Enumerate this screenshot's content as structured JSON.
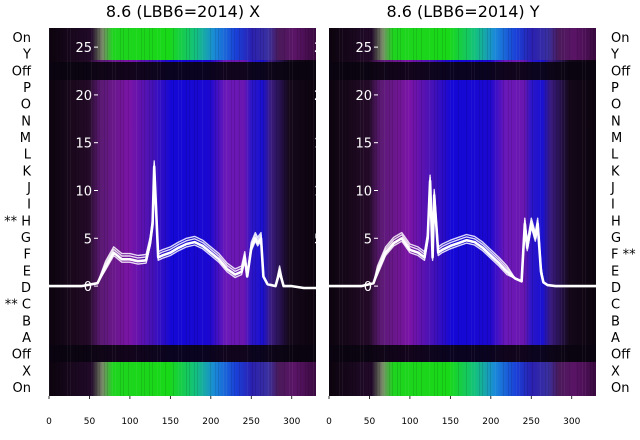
{
  "chart_data": [
    {
      "type": "line",
      "title": "8.6 (LBB6=2014) X",
      "x_ticks": [
        0,
        50,
        100,
        150,
        200,
        250,
        300
      ],
      "y_ticks": [
        0,
        5,
        10,
        15,
        20,
        25
      ],
      "xlim": [
        0,
        330
      ],
      "ylim": [
        -11.5,
        27
      ],
      "row_labels": [
        "On",
        "Y",
        "Off",
        "P",
        "O",
        "N",
        "M",
        "L",
        "K",
        "J",
        "I",
        "** H",
        "G",
        "F",
        "E",
        "D",
        "** C",
        "B",
        "A",
        "Off",
        "X",
        "On"
      ],
      "row_label_side": "left",
      "background": "heatmap",
      "series": [
        {
          "x": [
            0,
            40,
            60,
            70,
            80,
            90,
            100,
            110,
            120,
            125,
            128,
            130,
            135,
            140,
            150,
            160,
            170,
            180,
            190,
            200,
            210,
            220,
            230,
            238,
            242,
            245,
            250,
            255,
            258,
            262,
            265,
            270,
            280,
            285,
            290,
            300,
            315,
            330
          ],
          "y": [
            0,
            0,
            0.3,
            2,
            3.5,
            2.8,
            2.8,
            2.6,
            2.7,
            4.5,
            6.5,
            12.5,
            3,
            3.2,
            3.5,
            4,
            4.4,
            4.6,
            4.2,
            3.5,
            2.8,
            1.8,
            1.2,
            1.5,
            3,
            1,
            4,
            5,
            4.5,
            5,
            1,
            0.2,
            0,
            1.5,
            0,
            0,
            -0.2,
            -0.2
          ]
        }
      ]
    },
    {
      "type": "line",
      "title": "8.6 (LBB6=2014) Y",
      "x_ticks": [
        0,
        50,
        100,
        150,
        200,
        250,
        300
      ],
      "y_ticks": [
        0,
        5,
        10,
        15,
        20,
        25
      ],
      "xlim": [
        0,
        330
      ],
      "ylim": [
        -11.5,
        27
      ],
      "row_labels": [
        "On",
        "Y",
        "Off",
        "P",
        "O",
        "N",
        "M",
        "L",
        "K",
        "J",
        "I",
        "H",
        "G",
        "F **",
        "E",
        "D",
        "C",
        "B",
        "A",
        "Off",
        "X",
        "On"
      ],
      "row_label_side": "right",
      "background": "heatmap",
      "series": [
        {
          "x": [
            0,
            40,
            55,
            60,
            70,
            80,
            90,
            100,
            110,
            118,
            122,
            125,
            128,
            130,
            135,
            140,
            150,
            160,
            170,
            180,
            190,
            200,
            210,
            220,
            230,
            238,
            242,
            245,
            250,
            255,
            258,
            262,
            265,
            270,
            280,
            330
          ],
          "y": [
            0,
            0,
            0.3,
            1.5,
            3.5,
            4.5,
            5,
            3.8,
            3.5,
            3,
            5,
            11,
            3,
            9.5,
            3.5,
            3.8,
            4.2,
            4.5,
            4.8,
            4.6,
            4,
            3.2,
            2.4,
            1.5,
            0.8,
            0.5,
            6.5,
            4,
            6.5,
            5,
            6.5,
            1.5,
            0.4,
            0.1,
            0,
            0
          ]
        }
      ]
    }
  ]
}
